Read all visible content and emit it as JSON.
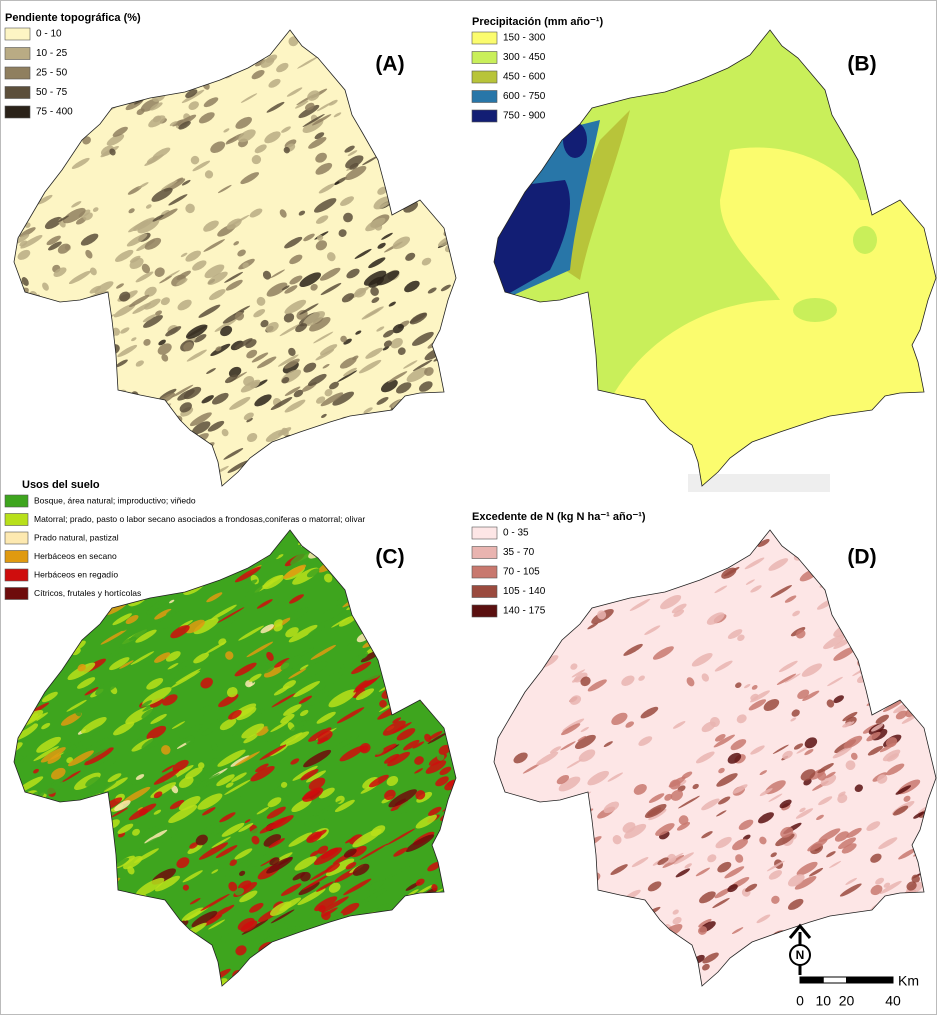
{
  "panels": [
    {
      "label": "(A)",
      "legend": {
        "title": "Pendiente topográfica (%)",
        "items": [
          {
            "label": "0 - 10",
            "color": "#fdf5c4"
          },
          {
            "label": "10 - 25",
            "color": "#b9ab84"
          },
          {
            "label": "25 - 50",
            "color": "#8f7f5f"
          },
          {
            "label": "50 - 75",
            "color": "#5c4f3b"
          },
          {
            "label": "75 - 400",
            "color": "#2a2219"
          }
        ]
      }
    },
    {
      "label": "(B)",
      "legend": {
        "title": "Precipitación (mm año⁻¹)",
        "items": [
          {
            "label": "150 - 300",
            "color": "#fbfc6e"
          },
          {
            "label": "300 - 450",
            "color": "#c9ef5a"
          },
          {
            "label": "450 - 600",
            "color": "#b8c43a"
          },
          {
            "label": "600 - 750",
            "color": "#2876a8"
          },
          {
            "label": "750 - 900",
            "color": "#121e74"
          }
        ]
      }
    },
    {
      "label": "(C)",
      "legend": {
        "title": "Usos del suelo",
        "items": [
          {
            "label": "Bosque, área natural; improductivo; viñedo",
            "color": "#3ea51e"
          },
          {
            "label": "Matorral; prado, pasto o labor secano asociados a frondosas,coniferas o matorral; olivar",
            "color": "#b8e01a"
          },
          {
            "label": "Prado natural, pastizal",
            "color": "#fde9b0"
          },
          {
            "label": "Herbáceos en secano",
            "color": "#e09a10"
          },
          {
            "label": "Herbáceos en regadío",
            "color": "#cf0d0d"
          },
          {
            "label": "Cítricos, frutales y hortícolas",
            "color": "#6e0c0c"
          }
        ]
      }
    },
    {
      "label": "(D)",
      "legend": {
        "title": "Excedente de N (kg N ha⁻¹ año⁻¹)",
        "items": [
          {
            "label": "0 - 35",
            "color": "#fde6e6"
          },
          {
            "label": "35 - 70",
            "color": "#e9b4b0"
          },
          {
            "label": "70 - 105",
            "color": "#c8786e"
          },
          {
            "label": "105 - 140",
            "color": "#9a4a3e"
          },
          {
            "label": "140 - 175",
            "color": "#5a1010"
          }
        ]
      }
    }
  ],
  "north_arrow": "N",
  "scale_bar": {
    "unit": "Km",
    "ticks": [
      0,
      10,
      20,
      40
    ]
  }
}
